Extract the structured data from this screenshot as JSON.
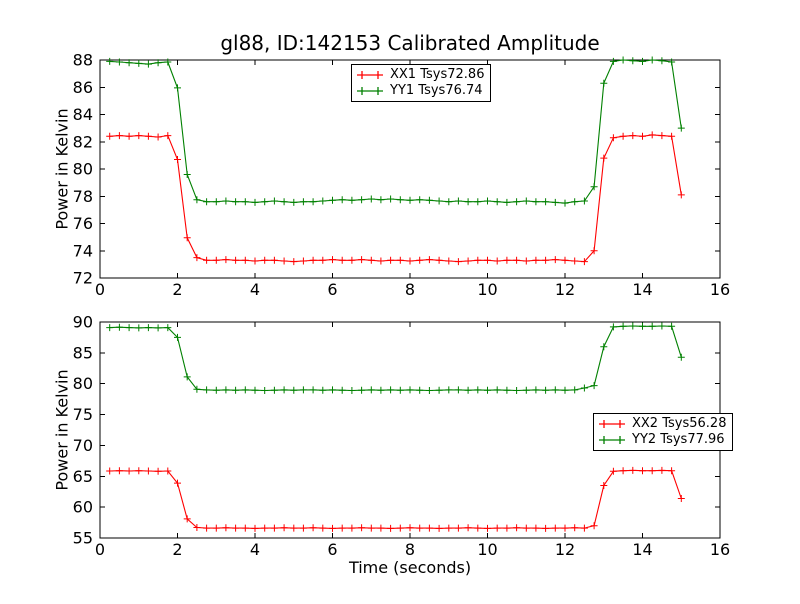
{
  "figure_title": "gl88, ID:142153 Calibrated Amplitude",
  "colors": {
    "xx": "#ff0000",
    "yy": "#008000",
    "axis": "#000000",
    "background": "#ffffff"
  },
  "chart_data": [
    {
      "type": "line",
      "title": "gl88, ID:142153 Calibrated Amplitude",
      "xlabel": "",
      "ylabel": "Power in Kelvin",
      "xlim": [
        0,
        16
      ],
      "ylim": [
        72,
        88
      ],
      "xticks": [
        0,
        2,
        4,
        6,
        8,
        10,
        12,
        14,
        16
      ],
      "yticks": [
        72,
        74,
        76,
        78,
        80,
        82,
        84,
        86,
        88
      ],
      "grid": false,
      "legend_position": "upper center",
      "x": [
        0.25,
        0.5,
        0.75,
        1,
        1.25,
        1.5,
        1.75,
        2,
        2.25,
        2.5,
        2.75,
        3,
        3.25,
        3.5,
        3.75,
        4,
        4.25,
        4.5,
        4.75,
        5,
        5.25,
        5.5,
        5.75,
        6,
        6.25,
        6.5,
        6.75,
        7,
        7.25,
        7.5,
        7.75,
        8,
        8.25,
        8.5,
        8.75,
        9,
        9.25,
        9.5,
        9.75,
        10,
        10.25,
        10.5,
        10.75,
        11,
        11.25,
        11.5,
        11.75,
        12,
        12.25,
        12.5,
        12.75,
        13,
        13.25,
        13.5,
        13.75,
        14,
        14.25,
        14.5,
        14.75,
        15
      ],
      "series": [
        {
          "name": "XX1 Tsys72.86",
          "color": "#ff0000",
          "marker": "+",
          "values": [
            82.4,
            82.45,
            82.4,
            82.45,
            82.4,
            82.35,
            82.45,
            80.7,
            74.95,
            73.5,
            73.3,
            73.3,
            73.35,
            73.3,
            73.3,
            73.25,
            73.3,
            73.3,
            73.25,
            73.2,
            73.25,
            73.3,
            73.3,
            73.35,
            73.3,
            73.3,
            73.35,
            73.3,
            73.25,
            73.3,
            73.3,
            73.25,
            73.3,
            73.35,
            73.3,
            73.25,
            73.2,
            73.25,
            73.3,
            73.3,
            73.25,
            73.3,
            73.3,
            73.25,
            73.3,
            73.3,
            73.35,
            73.3,
            73.25,
            73.2,
            74.0,
            80.8,
            82.3,
            82.4,
            82.45,
            82.4,
            82.5,
            82.45,
            82.4,
            78.1
          ]
        },
        {
          "name": "YY1 Tsys76.74",
          "color": "#008000",
          "marker": "+",
          "values": [
            87.9,
            87.85,
            87.8,
            87.75,
            87.7,
            87.8,
            87.85,
            85.95,
            79.6,
            77.75,
            77.6,
            77.6,
            77.65,
            77.6,
            77.6,
            77.55,
            77.6,
            77.65,
            77.6,
            77.55,
            77.6,
            77.6,
            77.65,
            77.7,
            77.75,
            77.7,
            77.75,
            77.8,
            77.75,
            77.8,
            77.75,
            77.7,
            77.75,
            77.7,
            77.65,
            77.6,
            77.65,
            77.6,
            77.6,
            77.65,
            77.6,
            77.55,
            77.6,
            77.65,
            77.6,
            77.6,
            77.55,
            77.5,
            77.6,
            77.65,
            78.7,
            86.3,
            87.9,
            88.0,
            87.95,
            87.9,
            88.0,
            87.95,
            87.85,
            83.0
          ]
        }
      ]
    },
    {
      "type": "line",
      "title": "",
      "xlabel": "Time (seconds)",
      "ylabel": "Power in Kelvin",
      "xlim": [
        0,
        16
      ],
      "ylim": [
        55,
        90
      ],
      "xticks": [
        0,
        2,
        4,
        6,
        8,
        10,
        12,
        14,
        16
      ],
      "yticks": [
        55,
        60,
        65,
        70,
        75,
        80,
        85,
        90
      ],
      "grid": false,
      "legend_position": "center right",
      "x": [
        0.25,
        0.5,
        0.75,
        1,
        1.25,
        1.5,
        1.75,
        2,
        2.25,
        2.5,
        2.75,
        3,
        3.25,
        3.5,
        3.75,
        4,
        4.25,
        4.5,
        4.75,
        5,
        5.25,
        5.5,
        5.75,
        6,
        6.25,
        6.5,
        6.75,
        7,
        7.25,
        7.5,
        7.75,
        8,
        8.25,
        8.5,
        8.75,
        9,
        9.25,
        9.5,
        9.75,
        10,
        10.25,
        10.5,
        10.75,
        11,
        11.25,
        11.5,
        11.75,
        12,
        12.25,
        12.5,
        12.75,
        13,
        13.25,
        13.5,
        13.75,
        14,
        14.25,
        14.5,
        14.75,
        15
      ],
      "series": [
        {
          "name": "XX2 Tsys56.28",
          "color": "#ff0000",
          "marker": "+",
          "values": [
            65.85,
            65.9,
            65.85,
            65.9,
            65.85,
            65.8,
            65.85,
            63.9,
            58.1,
            56.7,
            56.6,
            56.6,
            56.65,
            56.6,
            56.6,
            56.55,
            56.6,
            56.6,
            56.65,
            56.6,
            56.6,
            56.65,
            56.6,
            56.55,
            56.6,
            56.6,
            56.65,
            56.6,
            56.6,
            56.55,
            56.6,
            56.65,
            56.6,
            56.6,
            56.55,
            56.6,
            56.6,
            56.65,
            56.6,
            56.55,
            56.6,
            56.6,
            56.65,
            56.6,
            56.6,
            56.55,
            56.6,
            56.6,
            56.65,
            56.6,
            57.0,
            63.5,
            65.8,
            65.9,
            65.95,
            65.9,
            65.9,
            65.95,
            65.9,
            61.4
          ]
        },
        {
          "name": "YY2 Tsys77.96",
          "color": "#008000",
          "marker": "+",
          "values": [
            89.1,
            89.15,
            89.1,
            89.05,
            89.1,
            89.05,
            89.1,
            87.5,
            81.1,
            79.1,
            79.0,
            78.95,
            79.0,
            78.95,
            79.0,
            78.95,
            78.9,
            78.95,
            79.0,
            78.95,
            79.0,
            79.0,
            78.95,
            79.0,
            78.95,
            78.9,
            78.95,
            79.0,
            78.95,
            79.0,
            78.95,
            79.0,
            78.95,
            78.9,
            78.95,
            79.0,
            79.0,
            78.95,
            79.0,
            78.95,
            79.0,
            78.95,
            78.9,
            78.95,
            79.0,
            78.95,
            79.0,
            78.95,
            79.0,
            79.3,
            79.7,
            86.0,
            89.2,
            89.3,
            89.35,
            89.3,
            89.3,
            89.35,
            89.3,
            84.3
          ]
        }
      ]
    }
  ]
}
